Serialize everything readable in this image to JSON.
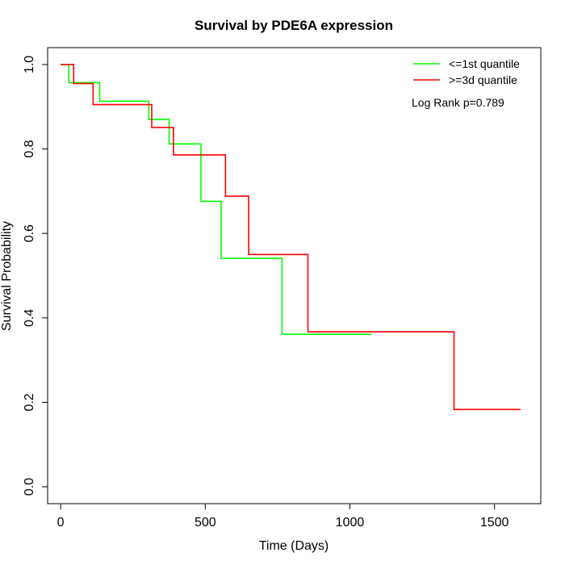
{
  "chart_data": {
    "type": "line",
    "title": "Survival by PDE6A expression",
    "xlabel": "Time (Days)",
    "ylabel": "Survival Probability",
    "xlim": [
      -45,
      1660
    ],
    "ylim": [
      -0.04,
      1.04
    ],
    "x_ticks": [
      0,
      500,
      1000,
      1500
    ],
    "y_ticks": [
      0.0,
      0.2,
      0.4,
      0.6,
      0.8,
      1.0
    ],
    "x_tick_labels": [
      "0",
      "500",
      "1000",
      "1500"
    ],
    "y_tick_labels": [
      "0.0",
      "0.2",
      "0.4",
      "0.6",
      "0.8",
      "1.0"
    ],
    "grid": false,
    "legend_position": "top-right",
    "annotation": "Log Rank p=0.789",
    "series": [
      {
        "name": "<=1st quantile",
        "color": "#00ff00",
        "x": [
          0,
          28,
          28,
          135,
          135,
          305,
          305,
          375,
          375,
          485,
          485,
          555,
          555,
          765,
          765,
          1075
        ],
        "y": [
          1.0,
          1.0,
          0.957,
          0.957,
          0.913,
          0.913,
          0.87,
          0.87,
          0.812,
          0.812,
          0.676,
          0.676,
          0.541,
          0.541,
          0.361,
          0.361
        ]
      },
      {
        "name": ">=3d quantile",
        "color": "#ff0000",
        "x": [
          0,
          45,
          45,
          112,
          112,
          315,
          315,
          390,
          390,
          570,
          570,
          650,
          650,
          855,
          855,
          1360,
          1360,
          1590
        ],
        "y": [
          1.0,
          1.0,
          0.955,
          0.955,
          0.905,
          0.905,
          0.851,
          0.851,
          0.786,
          0.786,
          0.688,
          0.688,
          0.55,
          0.55,
          0.367,
          0.367,
          0.183,
          0.183
        ]
      }
    ]
  }
}
